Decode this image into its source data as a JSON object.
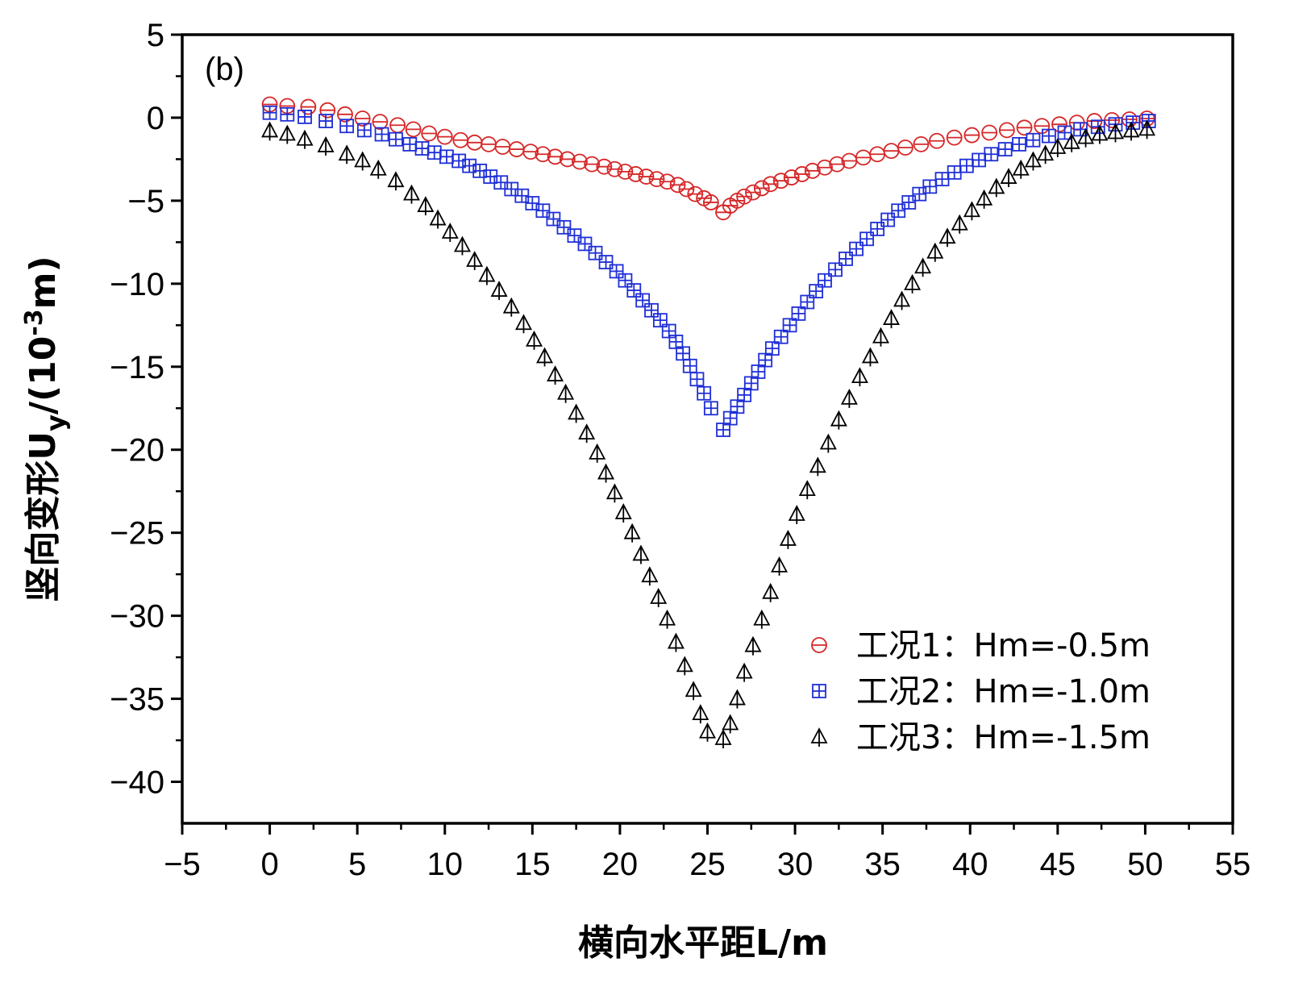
{
  "chart_data": {
    "type": "scatter",
    "panel_label": "(b)",
    "xlabel": "横向水平距L/m",
    "ylabel_main": "竖向变形U",
    "ylabel_sub": "y",
    "ylabel_mid": "/(10",
    "ylabel_sup": "-3",
    "ylabel_end": "m)",
    "xlim": [
      -5,
      55
    ],
    "ylim": [
      -42.5,
      5
    ],
    "xticks": [
      -5,
      0,
      5,
      10,
      15,
      20,
      25,
      30,
      35,
      40,
      45,
      50,
      55
    ],
    "yticks": [
      5,
      0,
      -5,
      -10,
      -15,
      -20,
      -25,
      -30,
      -35,
      -40
    ],
    "xtick_labels": [
      "−5",
      "0",
      "5",
      "10",
      "15",
      "20",
      "25",
      "30",
      "35",
      "40",
      "45",
      "50",
      "55"
    ],
    "ytick_labels": [
      "5",
      "0",
      "−5",
      "−10",
      "−15",
      "−20",
      "−25",
      "−30",
      "−35",
      "−40"
    ],
    "legend_position": "bottom-right",
    "series": [
      {
        "name": "工况1：Hm=-0.5m",
        "marker": "circle-bar",
        "color": "#d62728",
        "x": [
          0,
          1,
          2.2,
          3.3,
          4.3,
          5.3,
          6.3,
          7.3,
          8.2,
          9.1,
          10.0,
          10.9,
          11.7,
          12.5,
          13.3,
          14.1,
          14.9,
          15.6,
          16.3,
          17.0,
          17.7,
          18.4,
          19.1,
          19.7,
          20.3,
          20.9,
          21.5,
          22.1,
          22.7,
          23.3,
          23.8,
          24.3,
          24.8,
          25.2,
          25.9,
          26.3,
          26.7,
          27.1,
          27.6,
          28.1,
          28.6,
          29.2,
          29.8,
          30.4,
          31.0,
          31.7,
          32.4,
          33.1,
          33.9,
          34.7,
          35.5,
          36.3,
          37.2,
          38.1,
          39.1,
          40.1,
          41.1,
          42.1,
          43.1,
          44.1,
          45.1,
          46.1,
          47.1,
          48.1,
          49.1,
          50.1
        ],
        "y": [
          0.8,
          0.7,
          0.65,
          0.45,
          0.2,
          -0.05,
          -0.25,
          -0.45,
          -0.7,
          -0.95,
          -1.15,
          -1.35,
          -1.5,
          -1.6,
          -1.75,
          -1.9,
          -2.05,
          -2.2,
          -2.35,
          -2.5,
          -2.65,
          -2.8,
          -2.95,
          -3.1,
          -3.25,
          -3.4,
          -3.55,
          -3.7,
          -3.85,
          -4.05,
          -4.3,
          -4.6,
          -4.85,
          -5.1,
          -5.7,
          -5.3,
          -5.0,
          -4.75,
          -4.5,
          -4.25,
          -4.0,
          -3.8,
          -3.6,
          -3.4,
          -3.2,
          -3.0,
          -2.8,
          -2.6,
          -2.4,
          -2.2,
          -2.0,
          -1.8,
          -1.6,
          -1.4,
          -1.2,
          -1.05,
          -0.9,
          -0.75,
          -0.6,
          -0.5,
          -0.4,
          -0.3,
          -0.2,
          -0.15,
          -0.1,
          -0.05
        ]
      },
      {
        "name": "工况2：Hm=-1.0m",
        "marker": "square-plus",
        "color": "#1f2fd6",
        "x": [
          0,
          1,
          2,
          3.2,
          4.4,
          5.4,
          6.4,
          7.2,
          8.0,
          8.7,
          9.4,
          10.1,
          10.8,
          11.4,
          12.0,
          12.6,
          13.2,
          13.8,
          14.4,
          15.0,
          15.6,
          16.2,
          16.8,
          17.4,
          18.0,
          18.6,
          19.2,
          19.8,
          20.3,
          20.8,
          21.3,
          21.8,
          22.3,
          22.8,
          23.2,
          23.6,
          24.0,
          24.4,
          24.8,
          25.2,
          25.9,
          26.3,
          26.7,
          27.1,
          27.5,
          27.9,
          28.3,
          28.7,
          29.2,
          29.7,
          30.2,
          30.7,
          31.2,
          31.7,
          32.3,
          32.9,
          33.5,
          34.1,
          34.7,
          35.3,
          35.9,
          36.5,
          37.1,
          37.7,
          38.4,
          39.1,
          39.8,
          40.5,
          41.2,
          42.0,
          42.8,
          43.6,
          44.5,
          45.4,
          46.3,
          47.3,
          48.3,
          49.3,
          50.2
        ],
        "y": [
          0.3,
          0.2,
          0.05,
          -0.2,
          -0.5,
          -0.75,
          -1.0,
          -1.3,
          -1.6,
          -1.85,
          -2.1,
          -2.35,
          -2.6,
          -2.9,
          -3.2,
          -3.55,
          -3.9,
          -4.3,
          -4.7,
          -5.15,
          -5.6,
          -6.1,
          -6.6,
          -7.1,
          -7.6,
          -8.15,
          -8.7,
          -9.25,
          -9.8,
          -10.4,
          -11.0,
          -11.6,
          -12.2,
          -12.85,
          -13.5,
          -14.2,
          -14.95,
          -15.75,
          -16.6,
          -17.5,
          -18.8,
          -18.1,
          -17.4,
          -16.7,
          -16.0,
          -15.3,
          -14.6,
          -13.9,
          -13.2,
          -12.5,
          -11.8,
          -11.1,
          -10.45,
          -9.8,
          -9.15,
          -8.5,
          -7.9,
          -7.3,
          -6.7,
          -6.15,
          -5.6,
          -5.1,
          -4.6,
          -4.15,
          -3.7,
          -3.3,
          -2.9,
          -2.55,
          -2.2,
          -1.9,
          -1.6,
          -1.35,
          -1.1,
          -0.9,
          -0.7,
          -0.55,
          -0.4,
          -0.3,
          -0.2
        ]
      },
      {
        "name": "工况3：Hm=-1.5m",
        "marker": "triangle-plus",
        "color": "#000000",
        "x": [
          0,
          1,
          2,
          3.2,
          4.4,
          5.3,
          6.2,
          7.2,
          8.1,
          8.9,
          9.6,
          10.3,
          11.0,
          11.7,
          12.4,
          13.1,
          13.8,
          14.5,
          15.1,
          15.7,
          16.3,
          16.9,
          17.5,
          18.1,
          18.7,
          19.2,
          19.7,
          20.2,
          20.7,
          21.2,
          21.7,
          22.2,
          22.7,
          23.2,
          23.7,
          24.2,
          24.6,
          25.0,
          25.9,
          26.3,
          26.7,
          27.1,
          27.6,
          28.1,
          28.6,
          29.1,
          29.6,
          30.1,
          30.7,
          31.3,
          31.9,
          32.5,
          33.1,
          33.7,
          34.3,
          34.9,
          35.5,
          36.1,
          36.7,
          37.3,
          38.0,
          38.7,
          39.4,
          40.1,
          40.8,
          41.5,
          42.2,
          42.9,
          43.6,
          44.3,
          45.0,
          45.8,
          46.6,
          47.4,
          48.3,
          49.2,
          50.1
        ],
        "y": [
          -0.8,
          -1.0,
          -1.3,
          -1.7,
          -2.2,
          -2.6,
          -3.1,
          -3.8,
          -4.6,
          -5.3,
          -6.1,
          -6.9,
          -7.7,
          -8.6,
          -9.5,
          -10.4,
          -11.4,
          -12.4,
          -13.4,
          -14.4,
          -15.5,
          -16.6,
          -17.8,
          -19.0,
          -20.2,
          -21.4,
          -22.6,
          -23.8,
          -25.0,
          -26.3,
          -27.6,
          -28.9,
          -30.2,
          -31.6,
          -33.0,
          -34.5,
          -35.9,
          -37.0,
          -37.4,
          -36.5,
          -35.0,
          -33.4,
          -31.8,
          -30.2,
          -28.6,
          -27.0,
          -25.4,
          -23.9,
          -22.4,
          -21.0,
          -19.6,
          -18.2,
          -16.9,
          -15.6,
          -14.4,
          -13.2,
          -12.1,
          -11.0,
          -10.0,
          -9.0,
          -8.1,
          -7.2,
          -6.4,
          -5.6,
          -4.9,
          -4.2,
          -3.6,
          -3.1,
          -2.6,
          -2.2,
          -1.8,
          -1.5,
          -1.2,
          -1.0,
          -0.9,
          -0.8,
          -0.7
        ]
      }
    ]
  }
}
